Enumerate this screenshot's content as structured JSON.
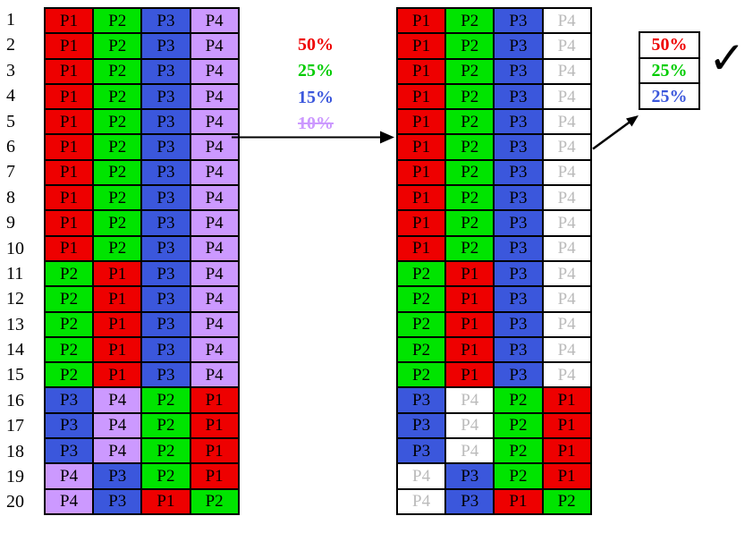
{
  "colors": {
    "P1": "#ee0000",
    "P2": "#00e400",
    "P3": "#3b57dc",
    "P4": "#cc99ff",
    "removed_bg": "#ffffff",
    "removed_text": "#bbbbbb",
    "cell_text": "#000000"
  },
  "left_table": {
    "row_numbers": [
      "1",
      "2",
      "3",
      "4",
      "5",
      "6",
      "7",
      "8",
      "9",
      "10",
      "11",
      "12",
      "13",
      "14",
      "15",
      "16",
      "17",
      "18",
      "19",
      "20"
    ],
    "rows": [
      [
        "P1",
        "P2",
        "P3",
        "P4"
      ],
      [
        "P1",
        "P2",
        "P3",
        "P4"
      ],
      [
        "P1",
        "P2",
        "P3",
        "P4"
      ],
      [
        "P1",
        "P2",
        "P3",
        "P4"
      ],
      [
        "P1",
        "P2",
        "P3",
        "P4"
      ],
      [
        "P1",
        "P2",
        "P3",
        "P4"
      ],
      [
        "P1",
        "P2",
        "P3",
        "P4"
      ],
      [
        "P1",
        "P2",
        "P3",
        "P4"
      ],
      [
        "P1",
        "P2",
        "P3",
        "P4"
      ],
      [
        "P1",
        "P2",
        "P3",
        "P4"
      ],
      [
        "P2",
        "P1",
        "P3",
        "P4"
      ],
      [
        "P2",
        "P1",
        "P3",
        "P4"
      ],
      [
        "P2",
        "P1",
        "P3",
        "P4"
      ],
      [
        "P2",
        "P1",
        "P3",
        "P4"
      ],
      [
        "P2",
        "P1",
        "P3",
        "P4"
      ],
      [
        "P3",
        "P4",
        "P2",
        "P1"
      ],
      [
        "P3",
        "P4",
        "P2",
        "P1"
      ],
      [
        "P3",
        "P4",
        "P2",
        "P1"
      ],
      [
        "P4",
        "P3",
        "P2",
        "P1"
      ],
      [
        "P4",
        "P3",
        "P1",
        "P2"
      ]
    ]
  },
  "right_table": {
    "removed_process": "P4",
    "rows": [
      [
        "P1",
        "P2",
        "P3",
        "P4"
      ],
      [
        "P1",
        "P2",
        "P3",
        "P4"
      ],
      [
        "P1",
        "P2",
        "P3",
        "P4"
      ],
      [
        "P1",
        "P2",
        "P3",
        "P4"
      ],
      [
        "P1",
        "P2",
        "P3",
        "P4"
      ],
      [
        "P1",
        "P2",
        "P3",
        "P4"
      ],
      [
        "P1",
        "P2",
        "P3",
        "P4"
      ],
      [
        "P1",
        "P2",
        "P3",
        "P4"
      ],
      [
        "P1",
        "P2",
        "P3",
        "P4"
      ],
      [
        "P1",
        "P2",
        "P3",
        "P4"
      ],
      [
        "P2",
        "P1",
        "P3",
        "P4"
      ],
      [
        "P2",
        "P1",
        "P3",
        "P4"
      ],
      [
        "P2",
        "P1",
        "P3",
        "P4"
      ],
      [
        "P2",
        "P1",
        "P3",
        "P4"
      ],
      [
        "P2",
        "P1",
        "P3",
        "P4"
      ],
      [
        "P3",
        "P4",
        "P2",
        "P1"
      ],
      [
        "P3",
        "P4",
        "P2",
        "P1"
      ],
      [
        "P3",
        "P4",
        "P2",
        "P1"
      ],
      [
        "P4",
        "P3",
        "P2",
        "P1"
      ],
      [
        "P4",
        "P3",
        "P1",
        "P2"
      ]
    ]
  },
  "middle_labels": [
    {
      "label": "50%",
      "color": "#ee0000",
      "strikethrough": false
    },
    {
      "label": "25%",
      "color": "#00cc00",
      "strikethrough": false
    },
    {
      "label": "15%",
      "color": "#3b57dc",
      "strikethrough": false
    },
    {
      "label": "10%",
      "color": "#cc99ff",
      "strikethrough": true
    }
  ],
  "legend": {
    "items": [
      {
        "label": "50%",
        "color": "#ee0000"
      },
      {
        "label": "25%",
        "color": "#00cc00"
      },
      {
        "label": "25%",
        "color": "#3b57dc"
      }
    ],
    "checkmark": "✓"
  }
}
